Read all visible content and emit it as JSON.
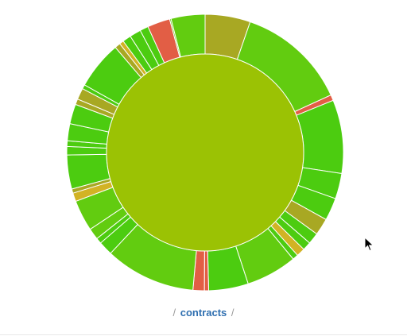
{
  "breadcrumb": {
    "sep_left": "/",
    "current": "contracts",
    "sep_right": "/"
  },
  "colors": {
    "center": "#9bc204",
    "bright_green": "#62cc10",
    "green": "#4ccc10",
    "olive": "#a8a823",
    "red": "#e25e45",
    "gold": "#d2b324",
    "stroke": "#ffffff"
  },
  "chart_data": {
    "type": "sunburst",
    "root": "contracts",
    "ring_sizes_deg": [
      [
        16,
        "olive"
      ],
      [
        39,
        "bright_green"
      ],
      [
        2,
        "red"
      ],
      [
        26,
        "green"
      ],
      [
        9,
        "green"
      ],
      [
        8,
        "green"
      ],
      [
        6,
        "olive"
      ],
      [
        4,
        "green"
      ],
      [
        3,
        "green"
      ],
      [
        3,
        "gold"
      ],
      [
        2,
        "green"
      ],
      [
        18,
        "bright_green"
      ],
      [
        14,
        "green"
      ],
      [
        1.5,
        "red"
      ],
      [
        4,
        "red"
      ],
      [
        32,
        "bright_green"
      ],
      [
        5,
        "green"
      ],
      [
        2,
        "green"
      ],
      [
        4,
        "bright_green"
      ],
      [
        11,
        "bright_green"
      ],
      [
        3,
        "gold"
      ],
      [
        1.5,
        "olive"
      ],
      [
        12,
        "green"
      ],
      [
        3,
        "green"
      ],
      [
        2,
        "green"
      ],
      [
        6,
        "green"
      ],
      [
        7,
        "green"
      ],
      [
        2,
        "olive"
      ],
      [
        4,
        "olive"
      ],
      [
        1.5,
        "green"
      ],
      [
        17,
        "green"
      ],
      [
        2,
        "olive"
      ],
      [
        1.5,
        "gold"
      ],
      [
        3,
        "green"
      ],
      [
        4,
        "green"
      ],
      [
        3,
        "green"
      ],
      [
        8,
        "red"
      ],
      [
        0.5,
        "bright_green"
      ],
      [
        12,
        "bright_green"
      ]
    ]
  }
}
